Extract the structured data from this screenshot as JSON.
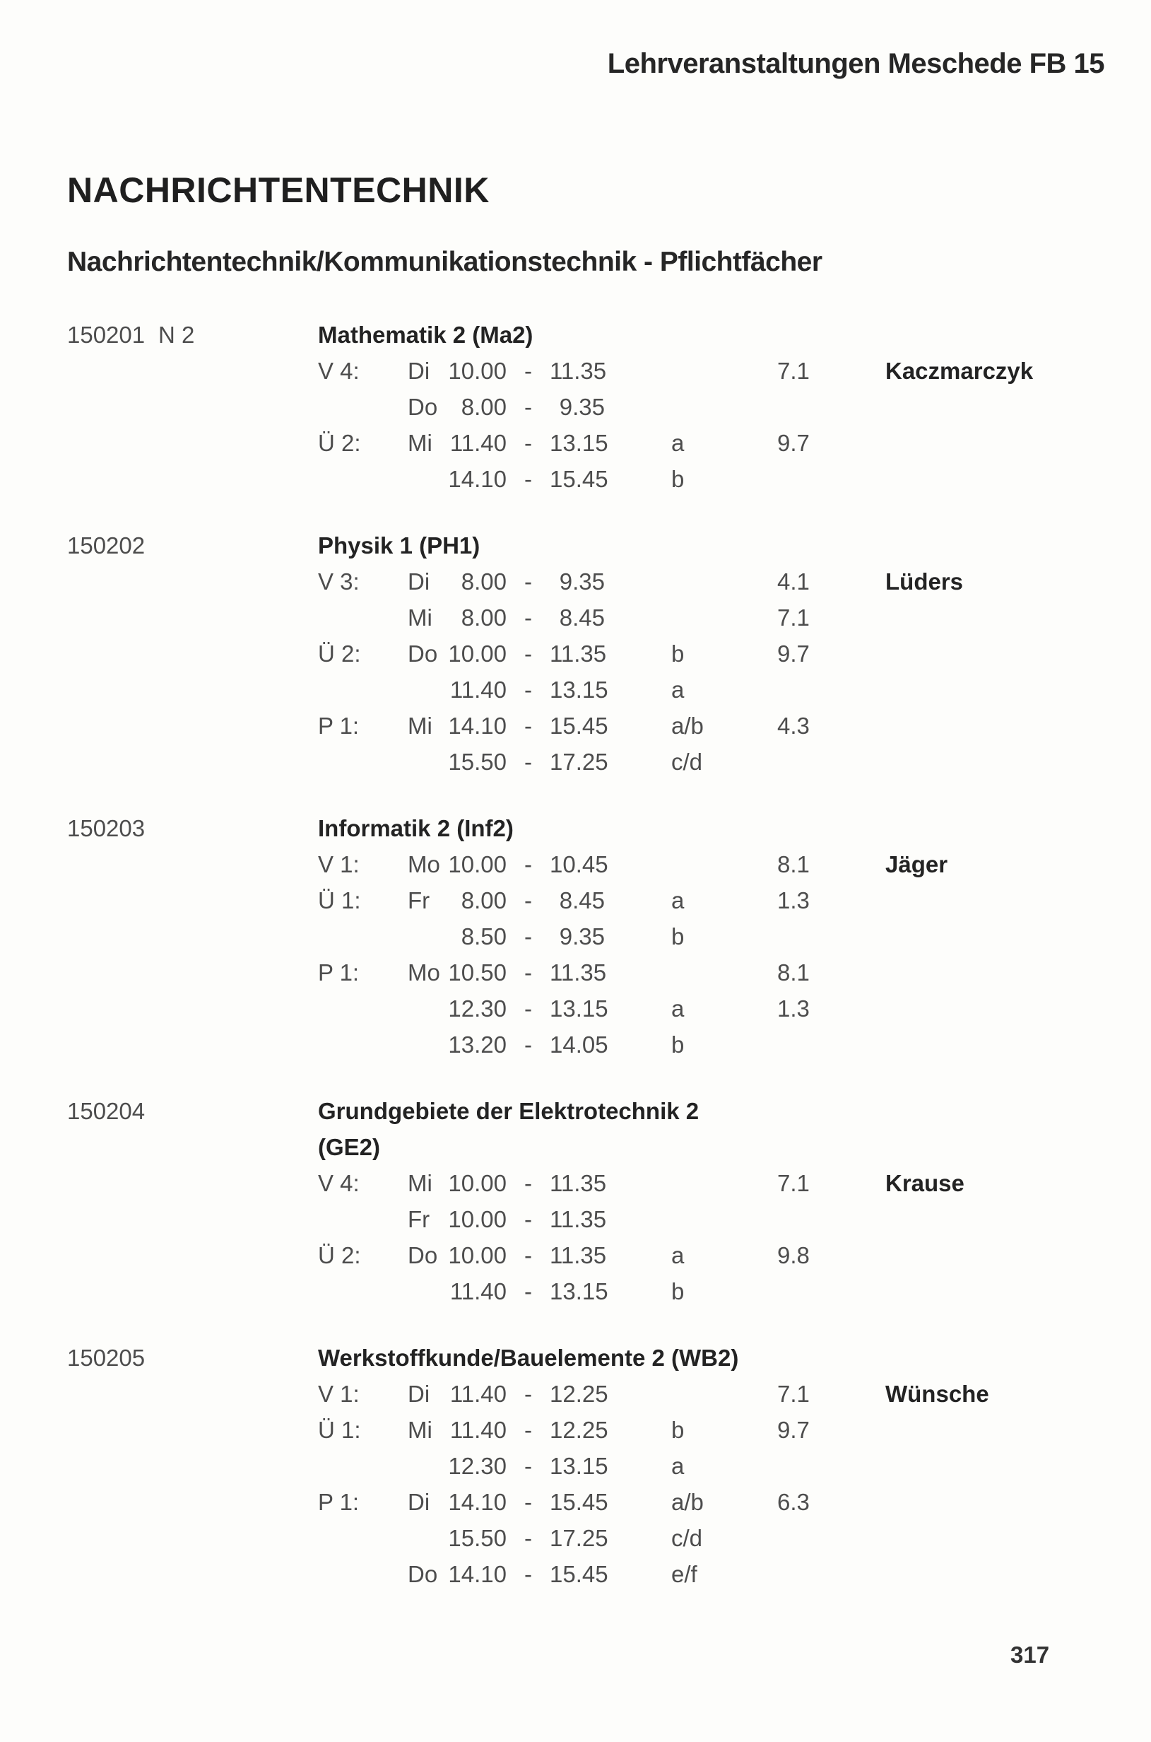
{
  "page": {
    "header": "Lehrveranstaltungen Meschede FB 15",
    "title": "NACHRICHTENTECHNIK",
    "subtitle": "Nachrichtentechnik/Kommunikationstechnik - Pflichtfächer",
    "page_number": "317",
    "time_separator": "-",
    "paper_color": "#fdfdfb",
    "ink_color": "#4d4d4d",
    "bold_ink_color": "#232323"
  },
  "courses": [
    {
      "number": "150201",
      "code": "N 2",
      "title": "Mathematik 2 (Ma2)",
      "title_line2": "",
      "sessions": [
        {
          "type": "V 4:",
          "day": "Di",
          "start": "10.00",
          "end": "11.35",
          "group": "",
          "room": "7.1",
          "lecturer": "Kaczmarczyk"
        },
        {
          "type": "",
          "day": "Do",
          "start": "8.00",
          "end": "9.35",
          "group": "",
          "room": "",
          "lecturer": ""
        },
        {
          "type": "Ü 2:",
          "day": "Mi",
          "start": "11.40",
          "end": "13.15",
          "group": "a",
          "room": "9.7",
          "lecturer": ""
        },
        {
          "type": "",
          "day": "",
          "start": "14.10",
          "end": "15.45",
          "group": "b",
          "room": "",
          "lecturer": ""
        }
      ]
    },
    {
      "number": "150202",
      "code": "",
      "title": "Physik 1 (PH1)",
      "title_line2": "",
      "sessions": [
        {
          "type": "V 3:",
          "day": "Di",
          "start": "8.00",
          "end": "9.35",
          "group": "",
          "room": "4.1",
          "lecturer": "Lüders"
        },
        {
          "type": "",
          "day": "Mi",
          "start": "8.00",
          "end": "8.45",
          "group": "",
          "room": "7.1",
          "lecturer": ""
        },
        {
          "type": "Ü 2:",
          "day": "Do",
          "start": "10.00",
          "end": "11.35",
          "group": "b",
          "room": "9.7",
          "lecturer": ""
        },
        {
          "type": "",
          "day": "",
          "start": "11.40",
          "end": "13.15",
          "group": "a",
          "room": "",
          "lecturer": ""
        },
        {
          "type": "P 1:",
          "day": "Mi",
          "start": "14.10",
          "end": "15.45",
          "group": "a/b",
          "room": "4.3",
          "lecturer": ""
        },
        {
          "type": "",
          "day": "",
          "start": "15.50",
          "end": "17.25",
          "group": "c/d",
          "room": "",
          "lecturer": ""
        }
      ]
    },
    {
      "number": "150203",
      "code": "",
      "title": "Informatik 2 (Inf2)",
      "title_line2": "",
      "sessions": [
        {
          "type": "V 1:",
          "day": "Mo",
          "start": "10.00",
          "end": "10.45",
          "group": "",
          "room": "8.1",
          "lecturer": "Jäger"
        },
        {
          "type": "Ü 1:",
          "day": "Fr",
          "start": "8.00",
          "end": "8.45",
          "group": "a",
          "room": "1.3",
          "lecturer": ""
        },
        {
          "type": "",
          "day": "",
          "start": "8.50",
          "end": "9.35",
          "group": "b",
          "room": "",
          "lecturer": ""
        },
        {
          "type": "P 1:",
          "day": "Mo",
          "start": "10.50",
          "end": "11.35",
          "group": "",
          "room": "8.1",
          "lecturer": ""
        },
        {
          "type": "",
          "day": "",
          "start": "12.30",
          "end": "13.15",
          "group": "a",
          "room": "1.3",
          "lecturer": ""
        },
        {
          "type": "",
          "day": "",
          "start": "13.20",
          "end": "14.05",
          "group": "b",
          "room": "",
          "lecturer": ""
        }
      ]
    },
    {
      "number": "150204",
      "code": "",
      "title": "Grundgebiete der Elektrotechnik 2",
      "title_line2": "(GE2)",
      "sessions": [
        {
          "type": "V 4:",
          "day": "Mi",
          "start": "10.00",
          "end": "11.35",
          "group": "",
          "room": "7.1",
          "lecturer": "Krause"
        },
        {
          "type": "",
          "day": "Fr",
          "start": "10.00",
          "end": "11.35",
          "group": "",
          "room": "",
          "lecturer": ""
        },
        {
          "type": "Ü 2:",
          "day": "Do",
          "start": "10.00",
          "end": "11.35",
          "group": "a",
          "room": "9.8",
          "lecturer": ""
        },
        {
          "type": "",
          "day": "",
          "start": "11.40",
          "end": "13.15",
          "group": "b",
          "room": "",
          "lecturer": ""
        }
      ]
    },
    {
      "number": "150205",
      "code": "",
      "title": "Werkstoffkunde/Bauelemente 2 (WB2)",
      "title_line2": "",
      "sessions": [
        {
          "type": "V 1:",
          "day": "Di",
          "start": "11.40",
          "end": "12.25",
          "group": "",
          "room": "7.1",
          "lecturer": "Wünsche"
        },
        {
          "type": "Ü 1:",
          "day": "Mi",
          "start": "11.40",
          "end": "12.25",
          "group": "b",
          "room": "9.7",
          "lecturer": ""
        },
        {
          "type": "",
          "day": "",
          "start": "12.30",
          "end": "13.15",
          "group": "a",
          "room": "",
          "lecturer": ""
        },
        {
          "type": "P 1:",
          "day": "Di",
          "start": "14.10",
          "end": "15.45",
          "group": "a/b",
          "room": "6.3",
          "lecturer": ""
        },
        {
          "type": "",
          "day": "",
          "start": "15.50",
          "end": "17.25",
          "group": "c/d",
          "room": "",
          "lecturer": ""
        },
        {
          "type": "",
          "day": "Do",
          "start": "14.10",
          "end": "15.45",
          "group": "e/f",
          "room": "",
          "lecturer": ""
        }
      ]
    }
  ]
}
